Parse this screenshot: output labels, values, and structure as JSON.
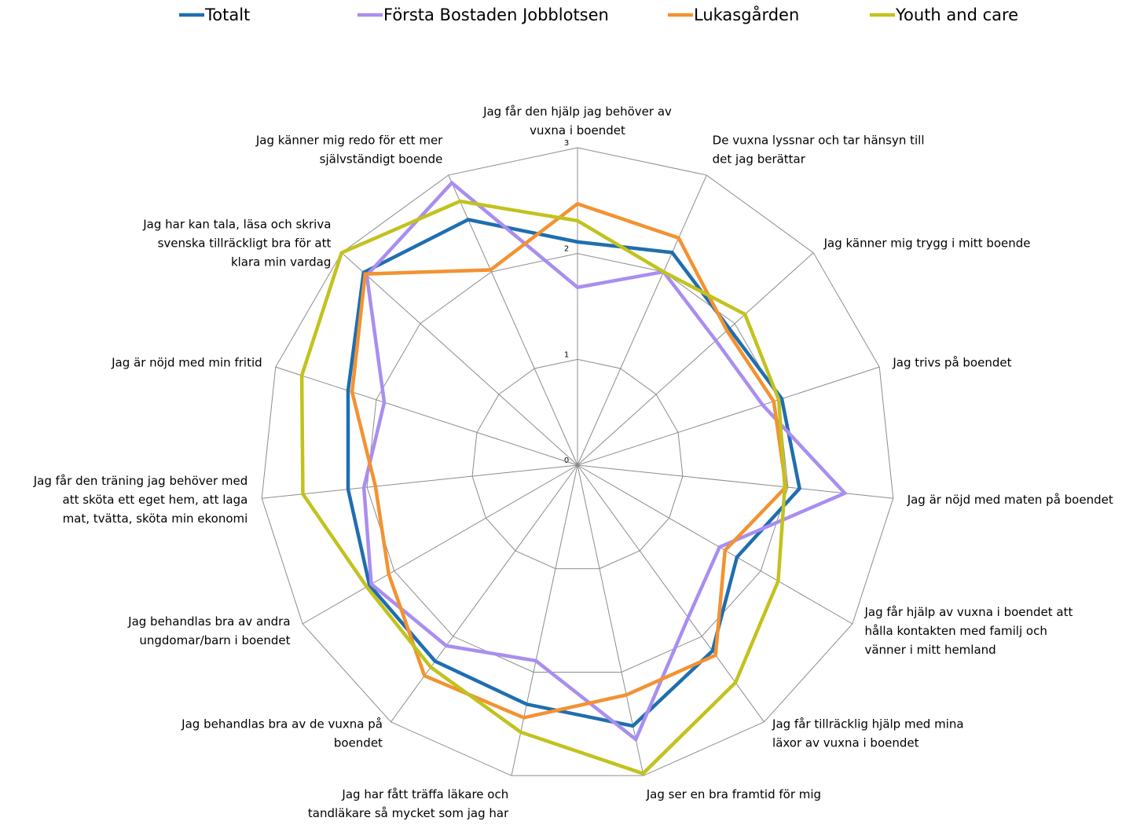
{
  "chart_data": {
    "type": "radar",
    "categories": [
      "Jag får den hjälp jag behöver av vuxna i boendet",
      "De vuxna lyssnar och tar hänsyn till det jag berättar",
      "Jag känner mig trygg i mitt boende",
      "Jag trivs på boendet",
      "Jag är nöjd med maten på boendet",
      "Jag får hjälp av vuxna i boendet att hålla kontakten med familj och vänner i mitt hemland",
      "Jag får tillräcklig hjälp med mina läxor av vuxna i boendet",
      "Jag ser en bra framtid för mig",
      "Jag har fått träffa läkare och tandläkare så mycket som jag har behövt, sedan jag flyttade in i mitt nuvarande boende",
      "Jag behandlas bra av de vuxna på boendet",
      "Jag behandlas bra av andra ungdomar/barn i boendet",
      "Jag får den träning jag behöver med att sköta ett eget hem, att laga mat, tvätta, sköta min ekonomi",
      "Jag är nöjd med min fritid",
      "Jag har kan tala, läsa och skriva svenska tillräckligt bra för att klara min vardag",
      "Jag känner mig redo för ett mer självständigt boende"
    ],
    "series": [
      {
        "name": "Totalt",
        "color": "#1f6eb0",
        "values": [
          2.11,
          2.2,
          1.93,
          2.03,
          2.11,
          1.74,
          2.17,
          2.52,
          2.31,
          2.29,
          2.27,
          2.18,
          2.28,
          2.72,
          2.54
        ]
      },
      {
        "name": "Första Bostaden Jobblotsen",
        "color": "#a98ef0",
        "values": [
          1.68,
          2.0,
          1.76,
          1.84,
          2.54,
          1.55,
          1.78,
          2.65,
          1.89,
          2.11,
          2.25,
          2.03,
          1.92,
          2.68,
          2.92
        ]
      },
      {
        "name": "Lukasgården",
        "color": "#f39232",
        "values": [
          2.47,
          2.35,
          1.9,
          1.95,
          1.98,
          1.61,
          2.22,
          2.22,
          2.44,
          2.46,
          2.06,
          1.92,
          2.24,
          2.7,
          2.02
        ]
      },
      {
        "name": "Youth and care",
        "color": "#c2c21e",
        "values": [
          2.31,
          2.0,
          2.13,
          2.0,
          1.97,
          2.19,
          2.54,
          2.98,
          2.58,
          2.36,
          2.3,
          2.61,
          2.74,
          3.0,
          2.73
        ]
      }
    ],
    "ylim": [
      0,
      3
    ],
    "yticks": [
      0,
      1,
      2,
      3
    ],
    "legend": "top"
  }
}
